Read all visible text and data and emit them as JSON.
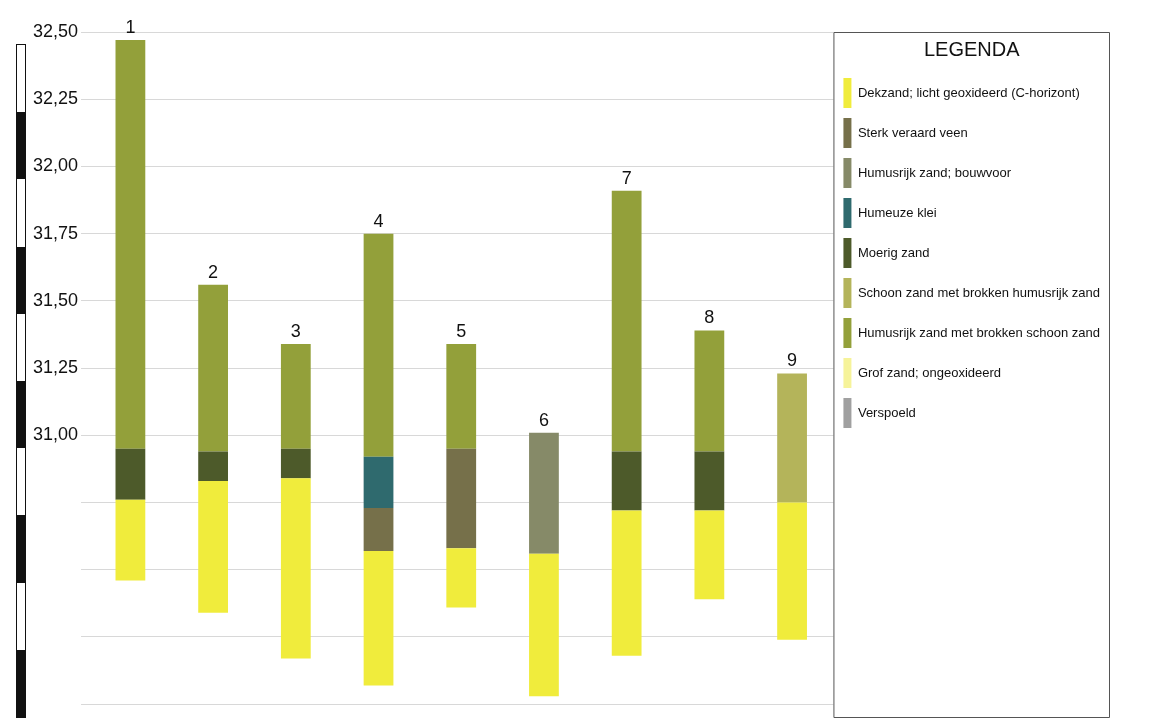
{
  "chart_data": {
    "type": "bar",
    "categories": [
      "1",
      "2",
      "3",
      "4",
      "5",
      "6",
      "7",
      "8",
      "9"
    ],
    "series": [
      {
        "name": "Dekzand; licht geoxideerd (C-horizont)",
        "color": "#f0ec3c",
        "base": [
          30.46,
          30.34,
          30.17,
          30.07,
          30.36,
          30.03,
          30.18,
          30.39,
          30.24
        ],
        "values": [
          0.3,
          0.49,
          0.67,
          0.5,
          0.22,
          0.53,
          0.54,
          0.33,
          0.51
        ]
      },
      {
        "name": "Sterk veraard veen",
        "color": "#76704a",
        "base": [
          null,
          null,
          null,
          30.57,
          30.58,
          null,
          null,
          null,
          null
        ],
        "values": [
          null,
          null,
          null,
          0.16,
          0.37,
          null,
          null,
          null,
          null
        ]
      },
      {
        "name": "Humusrijk zand; bouwvoor",
        "color": "#868a68",
        "base": [
          null,
          null,
          null,
          null,
          null,
          30.56,
          null,
          null,
          null
        ],
        "values": [
          null,
          null,
          null,
          null,
          null,
          0.45,
          null,
          null,
          null
        ]
      },
      {
        "name": "Humeuze klei",
        "color": "#2f6a6e",
        "base": [
          null,
          null,
          null,
          30.73,
          null,
          null,
          null,
          null,
          null
        ],
        "values": [
          null,
          null,
          null,
          0.19,
          null,
          null,
          null,
          null,
          null
        ]
      },
      {
        "name": "Moerig zand",
        "color": "#4d5a2a",
        "base": [
          30.76,
          30.83,
          30.84,
          null,
          null,
          null,
          30.72,
          30.72,
          null
        ],
        "values": [
          0.19,
          0.11,
          0.11,
          null,
          null,
          null,
          0.22,
          0.22,
          null
        ]
      },
      {
        "name": "Schoon zand met brokken humusrijk zand",
        "color": "#b4b45a",
        "base": [
          null,
          null,
          null,
          null,
          null,
          null,
          null,
          null,
          30.75
        ],
        "values": [
          null,
          null,
          null,
          null,
          null,
          null,
          null,
          null,
          0.48
        ]
      },
      {
        "name": "Humusrijk zand met brokken schoon zand",
        "color": "#93a03a",
        "base": [
          30.95,
          30.94,
          30.95,
          30.92,
          30.95,
          null,
          30.94,
          30.94,
          null
        ],
        "values": [
          1.52,
          0.62,
          0.39,
          0.83,
          0.39,
          null,
          0.97,
          0.45,
          null
        ]
      },
      {
        "name": "Grof zand; ongeoxideerd",
        "color": "#f6f39a",
        "values": [
          null,
          null,
          null,
          null,
          null,
          null,
          null,
          null,
          null
        ]
      },
      {
        "name": "Verspoeld",
        "color": "#a0a0a0",
        "values": [
          null,
          null,
          null,
          null,
          null,
          null,
          null,
          null,
          null
        ]
      }
    ],
    "legend_title": "LEGENDA",
    "legend": "top right",
    "grid": "y",
    "ylim": [
      30.0,
      32.5
    ],
    "yticks": [
      {
        "value": 30.0,
        "label": null
      },
      {
        "value": 30.25,
        "label": null
      },
      {
        "value": 30.5,
        "label": null
      },
      {
        "value": 30.75,
        "label": null
      },
      {
        "value": 31.0,
        "label": "31,00"
      },
      {
        "value": 31.25,
        "label": "31,25"
      },
      {
        "value": 31.5,
        "label": "31,50"
      },
      {
        "value": 31.75,
        "label": "31,75"
      },
      {
        "value": 32.0,
        "label": "32,00"
      },
      {
        "value": 32.25,
        "label": "32,25"
      },
      {
        "value": 32.5,
        "label": "32,50"
      }
    ]
  }
}
